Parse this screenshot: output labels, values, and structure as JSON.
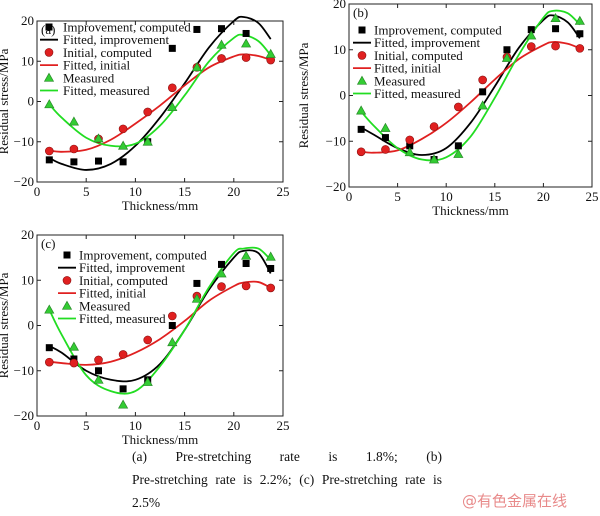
{
  "chart_data": [
    {
      "type": "scatter",
      "panel_label": "(a)",
      "xlabel": "Thickness/mm",
      "ylabel": "Residual stress/MPa",
      "xlim": [
        0,
        25
      ],
      "ylim": [
        -20,
        20
      ],
      "xticks": [
        0,
        5,
        10,
        15,
        20,
        25
      ],
      "yticks": [
        -20,
        -10,
        0,
        10,
        20
      ],
      "grid": false,
      "legend": "top-left",
      "x": [
        1.25,
        3.75,
        6.25,
        8.75,
        11.25,
        13.75,
        16.25,
        18.75,
        21.25,
        23.75
      ],
      "series": [
        {
          "name": "Improvement, computed",
          "kind": "points",
          "marker": "square",
          "color": "#000000",
          "values": [
            -14.5,
            -15,
            -14.8,
            -15,
            -10,
            13.2,
            17.9,
            18.1,
            16.9,
            null
          ]
        },
        {
          "name": "Fitted, improvement",
          "kind": "line",
          "color": "#000000"
        },
        {
          "name": "Initial, computed",
          "kind": "points",
          "marker": "circle",
          "color": "#e02020",
          "values": [
            -12.3,
            -11.8,
            -9.3,
            -6.8,
            -2.6,
            3.4,
            8.5,
            10.7,
            10.9,
            10.3
          ]
        },
        {
          "name": "Fitted, initial",
          "kind": "line",
          "color": "#e02020"
        },
        {
          "name": "Measured",
          "kind": "points",
          "marker": "triangle",
          "color": "#33cc33",
          "values": [
            -0.7,
            -5,
            -9.2,
            -11,
            -10,
            -1.4,
            8.5,
            14.1,
            14.4,
            11.8
          ]
        },
        {
          "name": "Fitted, measured",
          "kind": "line",
          "color": "#22dd22"
        }
      ],
      "fit_x": [
        1.25,
        2.5,
        5,
        7.5,
        10,
        12.5,
        15,
        17.5,
        20,
        21,
        22.5,
        23.75
      ],
      "fits": [
        [
          -14,
          -15.5,
          -17,
          -15.5,
          -11,
          -4,
          4.5,
          13.5,
          20,
          21,
          19.5,
          15.5
        ],
        [
          -12.2,
          -12.5,
          -12,
          -9.5,
          -5.5,
          -1,
          4,
          8.5,
          11.2,
          11.7,
          11.3,
          10.3
        ],
        [
          -0.7,
          -4,
          -9,
          -11,
          -10.5,
          -6,
          1.5,
          10,
          15.8,
          16.5,
          15,
          11.5
        ]
      ]
    },
    {
      "type": "scatter",
      "panel_label": "(b)",
      "xlabel": "Thickness/mm",
      "ylabel": "Residual stress/MPa",
      "xlim": [
        0,
        25
      ],
      "ylim": [
        -20,
        20
      ],
      "xticks": [
        0,
        5,
        10,
        15,
        20,
        25
      ],
      "yticks": [
        -20,
        -10,
        0,
        10,
        20
      ],
      "grid": false,
      "legend": "top-left",
      "x": [
        1.25,
        3.75,
        6.25,
        8.75,
        11.25,
        13.75,
        16.25,
        18.75,
        21.25,
        23.75
      ],
      "series": [
        {
          "name": "Improvement, computed",
          "kind": "points",
          "marker": "square",
          "color": "#000000",
          "values": [
            -7.4,
            -9.2,
            -11,
            -14,
            -11,
            0.8,
            10,
            14.4,
            14.6,
            13.5
          ]
        },
        {
          "name": "Fitted, improvement",
          "kind": "line",
          "color": "#000000"
        },
        {
          "name": "Initial, computed",
          "kind": "points",
          "marker": "circle",
          "color": "#e02020",
          "values": [
            -12.3,
            -11.8,
            -9.7,
            -6.8,
            -2.5,
            3.4,
            8.4,
            10.7,
            10.8,
            10.3
          ]
        },
        {
          "name": "Fitted, initial",
          "kind": "line",
          "color": "#e02020"
        },
        {
          "name": "Measured",
          "kind": "points",
          "marker": "triangle",
          "color": "#33cc33",
          "values": [
            -3.3,
            -7.1,
            -12.4,
            -14,
            -12.8,
            -2.2,
            8.2,
            13.1,
            16.9,
            16.3
          ]
        },
        {
          "name": "Fitted, measured",
          "kind": "line",
          "color": "#22dd22"
        }
      ],
      "fit_x": [
        1.25,
        2.5,
        5,
        7.5,
        10,
        12.5,
        15,
        17.5,
        20,
        21,
        22.5,
        23.75
      ],
      "fits": [
        [
          -7,
          -8.5,
          -11.5,
          -13,
          -11.5,
          -6,
          2,
          10.5,
          16.5,
          17.5,
          16,
          12.5
        ],
        [
          -12.3,
          -12.5,
          -12,
          -9.5,
          -6,
          -1.5,
          3.5,
          8,
          11,
          11.7,
          11.3,
          10.3
        ],
        [
          -3.5,
          -6.5,
          -11.5,
          -14,
          -13.5,
          -9,
          -0.5,
          9,
          17,
          18.5,
          18,
          15.5
        ]
      ]
    },
    {
      "type": "scatter",
      "panel_label": "(c)",
      "xlabel": "Thickness/mm",
      "ylabel": "Residual stress/MPa",
      "xlim": [
        0,
        25
      ],
      "ylim": [
        -20,
        20
      ],
      "xticks": [
        0,
        5,
        10,
        15,
        20,
        25
      ],
      "yticks": [
        -20,
        -10,
        0,
        10,
        20
      ],
      "grid": false,
      "legend": "top-left",
      "x": [
        1.25,
        3.75,
        6.25,
        8.75,
        11.25,
        13.75,
        16.25,
        18.75,
        21.25,
        23.75
      ],
      "series": [
        {
          "name": "Improvement, computed",
          "kind": "points",
          "marker": "square",
          "color": "#000000",
          "values": [
            -4.9,
            -7.4,
            -10,
            -14,
            -12,
            0,
            9.3,
            13.5,
            13.7,
            12.6
          ]
        },
        {
          "name": "Fitted, improvement",
          "kind": "line",
          "color": "#000000"
        },
        {
          "name": "Initial, computed",
          "kind": "points",
          "marker": "circle",
          "color": "#e02020",
          "values": [
            -8.1,
            -8.3,
            -7.6,
            -6.4,
            -3.2,
            2.1,
            6.5,
            8.6,
            8.75,
            8.3
          ]
        },
        {
          "name": "Fitted, initial",
          "kind": "line",
          "color": "#e02020"
        },
        {
          "name": "Measured",
          "kind": "points",
          "marker": "triangle",
          "color": "#33cc33",
          "values": [
            3.5,
            -4.7,
            -12,
            -17.5,
            -12.5,
            -3.7,
            5.9,
            11.5,
            15.4,
            15.2
          ]
        },
        {
          "name": "Fitted, measured",
          "kind": "line",
          "color": "#22dd22"
        }
      ],
      "fit_x": [
        1.25,
        2.5,
        5,
        7.5,
        10,
        12.5,
        15,
        17.5,
        20,
        21,
        22.5,
        23.75
      ],
      "fits": [
        [
          -4.5,
          -6,
          -10,
          -12,
          -12,
          -8.5,
          -1,
          8,
          15,
          16.5,
          16,
          11.5
        ],
        [
          -8,
          -8.3,
          -8.7,
          -8,
          -6,
          -3,
          1,
          5.5,
          8.7,
          9.5,
          9.6,
          8.3
        ],
        [
          3.5,
          -2,
          -11,
          -14.5,
          -14.5,
          -9,
          -1,
          8.5,
          16,
          17,
          17,
          14.5
        ]
      ]
    }
  ],
  "caption": {
    "line1": "(a)   Pre-stretching   rate   is   1.8%;   (b)",
    "line2": "Pre-stretching rate is 2.2%; (c) Pre-stretching rate is",
    "line3": "2.5%"
  },
  "watermark": "@有色金属在线"
}
